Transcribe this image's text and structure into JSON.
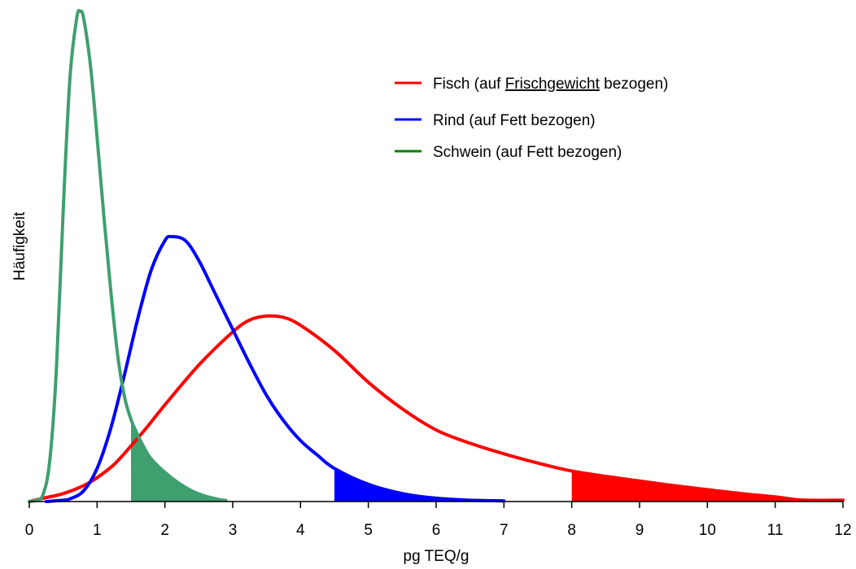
{
  "chart_data": {
    "type": "area",
    "xlabel": "pg TEQ/g",
    "ylabel": "Häufigkeit",
    "xlim": [
      0,
      12
    ],
    "xticks": [
      "0",
      "1",
      "2",
      "3",
      "4",
      "5",
      "6",
      "7",
      "8",
      "9",
      "10",
      "11",
      "12"
    ],
    "y_axis_visible": false,
    "grid": false,
    "legend_position": "top-right",
    "legend": {
      "fisch": {
        "prefix": "Fisch (auf ",
        "underlined": "Frischgewicht",
        "suffix": " bezogen)"
      },
      "rind": "Rind (auf Fett bezogen)",
      "schwein": "Schwein (auf Fett bezogen)"
    },
    "series": [
      {
        "key": "fisch",
        "color": "#ff0000",
        "shade_from": 8.0,
        "points": [
          [
            0,
            0
          ],
          [
            0.25,
            0.03
          ],
          [
            0.5,
            0.06
          ],
          [
            0.8,
            0.12
          ],
          [
            1.0,
            0.18
          ],
          [
            1.25,
            0.28
          ],
          [
            1.5,
            0.42
          ],
          [
            1.75,
            0.57
          ],
          [
            2.0,
            0.73
          ],
          [
            2.5,
            1.03
          ],
          [
            3.0,
            1.28
          ],
          [
            3.25,
            1.37
          ],
          [
            3.5,
            1.4
          ],
          [
            3.75,
            1.39
          ],
          [
            4.0,
            1.33
          ],
          [
            4.5,
            1.14
          ],
          [
            5.0,
            0.9
          ],
          [
            5.5,
            0.7
          ],
          [
            6.0,
            0.54
          ],
          [
            6.5,
            0.44
          ],
          [
            7.0,
            0.36
          ],
          [
            7.5,
            0.29
          ],
          [
            8.0,
            0.23
          ],
          [
            8.5,
            0.19
          ],
          [
            9.0,
            0.155
          ],
          [
            9.5,
            0.12
          ],
          [
            10.0,
            0.09
          ],
          [
            10.5,
            0.06
          ],
          [
            11.0,
            0.035
          ],
          [
            11.3,
            0.015
          ],
          [
            11.5,
            0.01
          ],
          [
            12.0,
            0.01
          ]
        ]
      },
      {
        "key": "rind",
        "color": "#0000ff",
        "shade_from": 4.5,
        "points": [
          [
            0.25,
            0
          ],
          [
            0.5,
            0.01
          ],
          [
            0.6,
            0.02
          ],
          [
            0.8,
            0.08
          ],
          [
            1.0,
            0.25
          ],
          [
            1.2,
            0.55
          ],
          [
            1.4,
            0.95
          ],
          [
            1.6,
            1.38
          ],
          [
            1.8,
            1.75
          ],
          [
            2.0,
            1.97
          ],
          [
            2.1,
            2.0
          ],
          [
            2.3,
            1.97
          ],
          [
            2.5,
            1.82
          ],
          [
            2.75,
            1.56
          ],
          [
            3.0,
            1.3
          ],
          [
            3.25,
            1.04
          ],
          [
            3.5,
            0.8
          ],
          [
            3.75,
            0.61
          ],
          [
            4.0,
            0.46
          ],
          [
            4.25,
            0.35
          ],
          [
            4.5,
            0.25
          ],
          [
            5.0,
            0.13
          ],
          [
            5.5,
            0.06
          ],
          [
            6.0,
            0.025
          ],
          [
            6.5,
            0.01
          ],
          [
            7.0,
            0.005
          ]
        ]
      },
      {
        "key": "schwein",
        "color": "#3f9f6f",
        "shade_from": 1.5,
        "points": [
          [
            0,
            0
          ],
          [
            0.1,
            0.01
          ],
          [
            0.2,
            0.05
          ],
          [
            0.3,
            0.3
          ],
          [
            0.4,
            1.0
          ],
          [
            0.5,
            2.2
          ],
          [
            0.6,
            3.2
          ],
          [
            0.7,
            3.65
          ],
          [
            0.75,
            3.7
          ],
          [
            0.8,
            3.65
          ],
          [
            0.9,
            3.3
          ],
          [
            1.0,
            2.75
          ],
          [
            1.1,
            2.15
          ],
          [
            1.2,
            1.6
          ],
          [
            1.3,
            1.12
          ],
          [
            1.4,
            0.8
          ],
          [
            1.5,
            0.62
          ],
          [
            1.6,
            0.5
          ],
          [
            1.7,
            0.4
          ],
          [
            1.8,
            0.32
          ],
          [
            2.0,
            0.22
          ],
          [
            2.2,
            0.14
          ],
          [
            2.4,
            0.08
          ],
          [
            2.6,
            0.04
          ],
          [
            2.8,
            0.015
          ],
          [
            2.9,
            0.008
          ]
        ]
      }
    ]
  }
}
